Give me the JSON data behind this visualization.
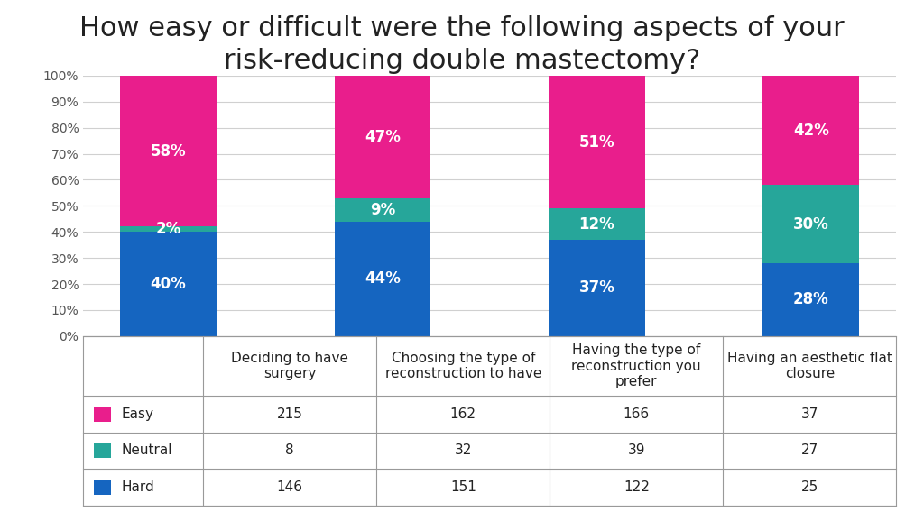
{
  "title": "How easy or difficult were the following aspects of your\nrisk-reducing double mastectomy?",
  "categories": [
    "Deciding to have\nsurgery",
    "Choosing the type of\nreconstruction to have",
    "Having the type of\nreconstruction you\nprefer",
    "Having an aesthetic flat\nclosure"
  ],
  "hard_pct": [
    40,
    44,
    37,
    28
  ],
  "neutral_pct": [
    2,
    9,
    12,
    30
  ],
  "easy_pct": [
    58,
    47,
    51,
    42
  ],
  "hard_color": "#1565C0",
  "neutral_color": "#26A69A",
  "easy_color": "#E91E8C",
  "table_rows": [
    {
      "label": "Easy",
      "color": "#E91E8C",
      "values": [
        215,
        162,
        166,
        37
      ]
    },
    {
      "label": "Neutral",
      "color": "#26A69A",
      "values": [
        8,
        32,
        39,
        27
      ]
    },
    {
      "label": "Hard",
      "color": "#1565C0",
      "values": [
        146,
        151,
        122,
        25
      ]
    }
  ],
  "ylim": [
    0,
    100
  ],
  "yticks": [
    0,
    10,
    20,
    30,
    40,
    50,
    60,
    70,
    80,
    90,
    100
  ],
  "ytick_labels": [
    "0%",
    "10%",
    "20%",
    "30%",
    "40%",
    "50%",
    "60%",
    "70%",
    "80%",
    "90%",
    "100%"
  ],
  "bar_width": 0.45,
  "title_fontsize": 22,
  "axis_label_fontsize": 11,
  "table_fontsize": 11,
  "background_color": "#ffffff",
  "grid_color": "#d0d0d0",
  "border_color": "#999999"
}
